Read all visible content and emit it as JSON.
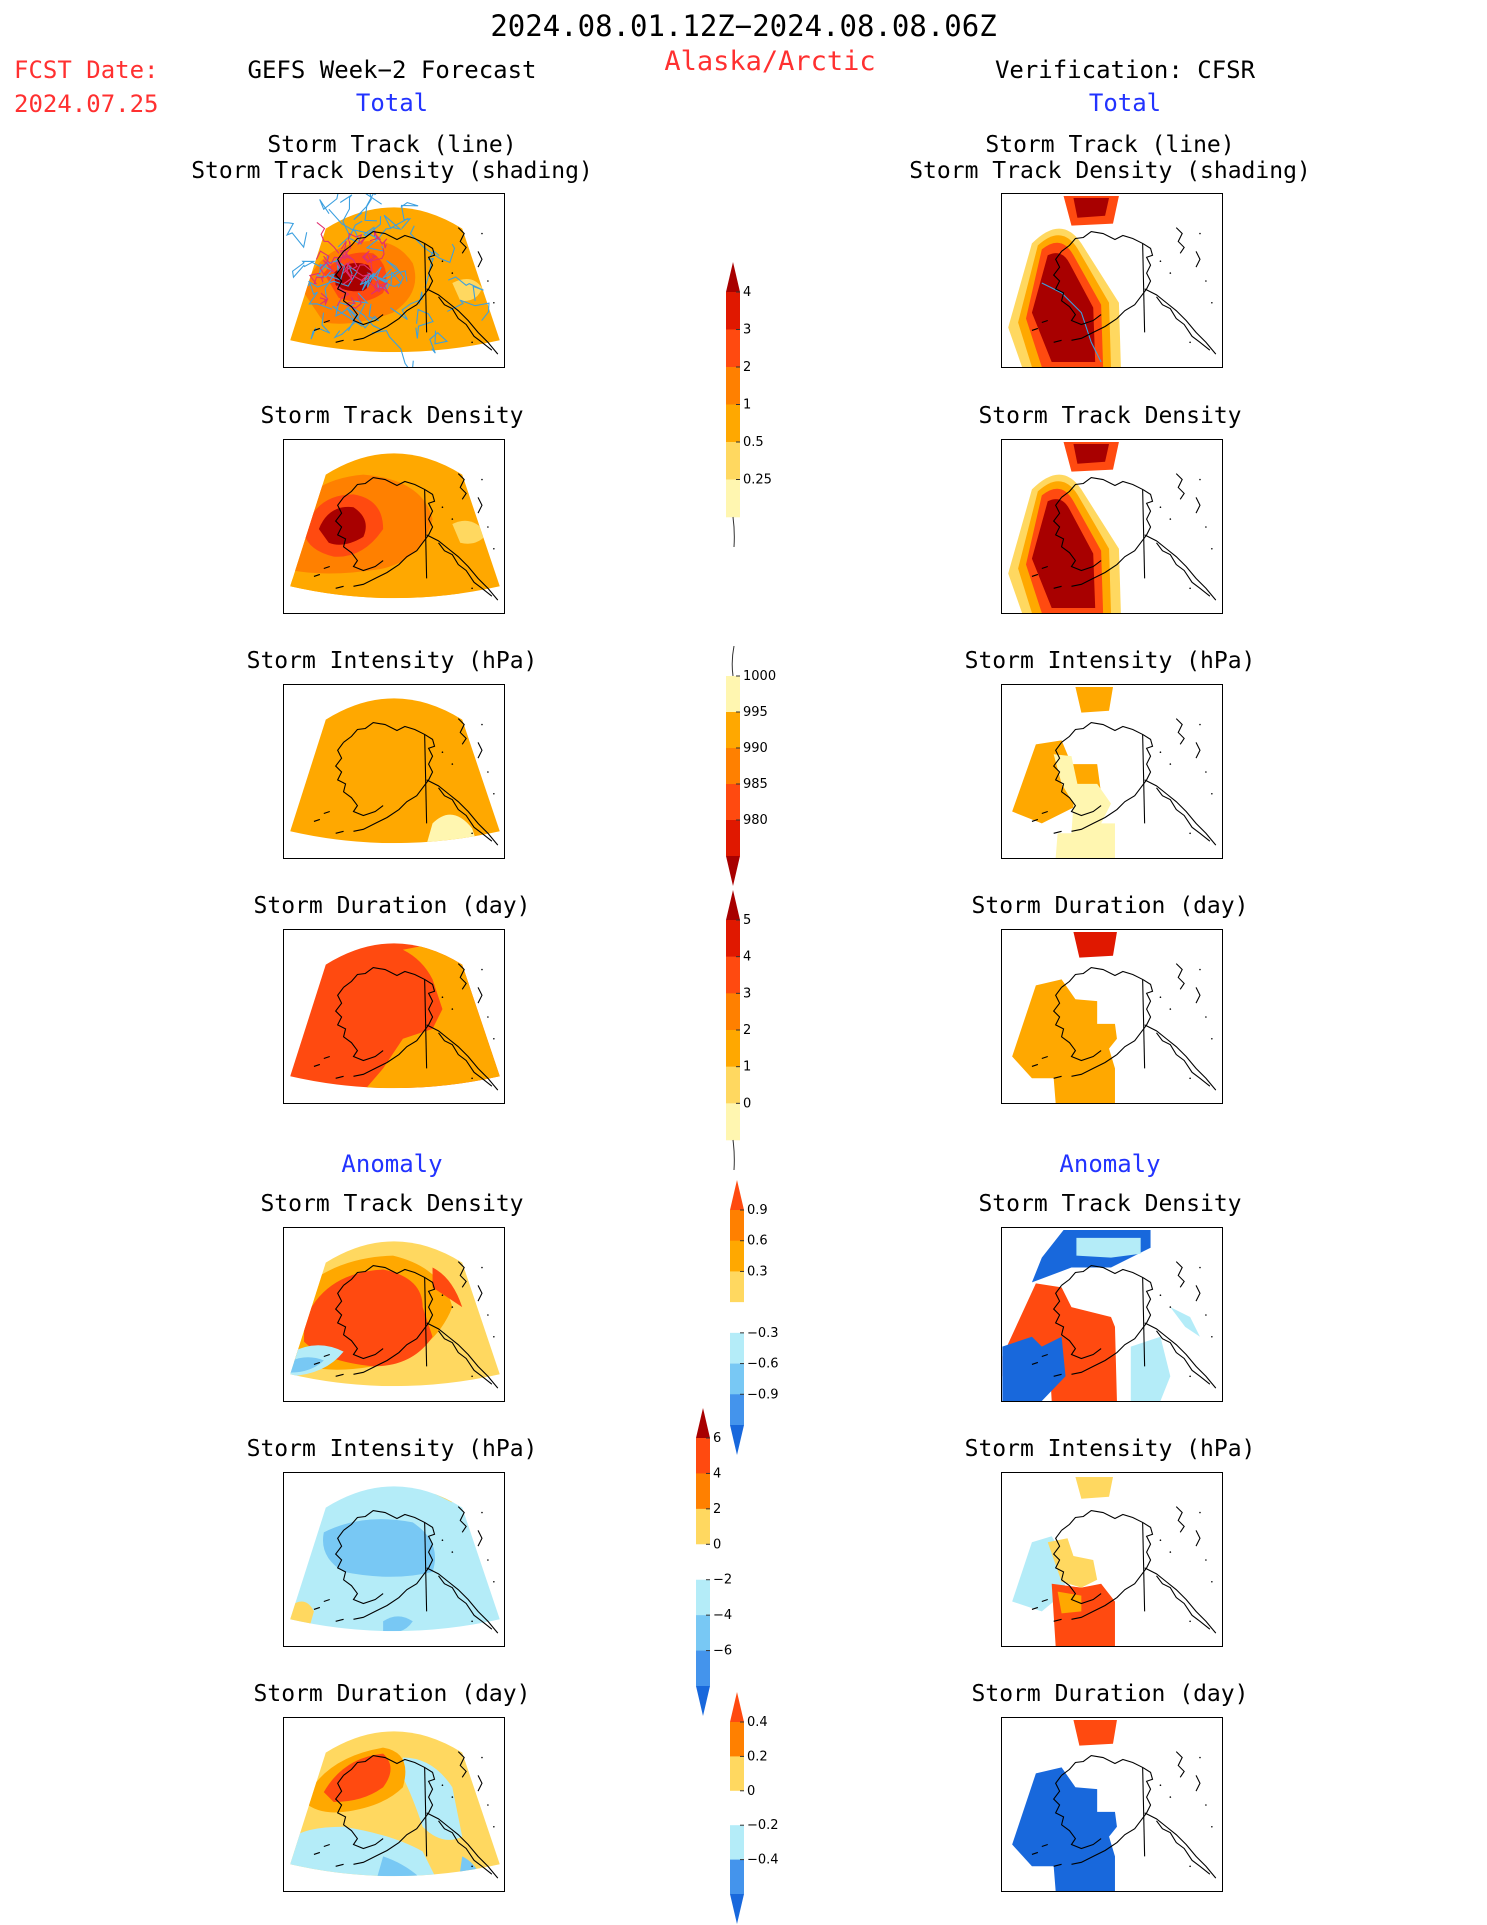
{
  "header": {
    "period": "2024.08.01.12Z−2024.08.08.06Z",
    "region": "Alaska/Arctic",
    "fcst_label": "FCST Date:",
    "fcst_date": "2024.07.25",
    "left_title": "GEFS Week−2 Forecast",
    "right_title": "Verification: CFSR",
    "total_left": "Total",
    "total_right": "Total",
    "anomaly_left": "Anomaly",
    "anomaly_right": "Anomaly"
  },
  "panels": {
    "track_1": "Storm Track (line)",
    "track_2": "Storm Track Density (shading)",
    "density": "Storm Track Density",
    "intensity": "Storm Intensity (hPa)",
    "duration": "Storm Duration (day)"
  },
  "colors": {
    "lightyellow": "#fff6b0",
    "yellow": "#ffd860",
    "gold": "#ffa800",
    "orange": "#ff8000",
    "redorange": "#ff4a10",
    "red": "#e01800",
    "darkred": "#a80000",
    "white": "#ffffff",
    "lightblue": "#b4ecf8",
    "skyblue": "#78c8f4",
    "midblue": "#4494ec",
    "blue": "#1868dc",
    "track_blue": "#3ca0e0",
    "track_pink": "#e03070"
  },
  "chart_data": [
    {
      "type": "colorbar",
      "name_ref": "density_total",
      "ticks": [
        "4",
        "3",
        "2",
        "1",
        "0.5",
        "0.25"
      ],
      "values": [
        4,
        3,
        2,
        1,
        0.5,
        0.25
      ]
    },
    {
      "type": "colorbar",
      "name_ref": "intensity_total",
      "ticks": [
        "1000",
        "995",
        "990",
        "985",
        "980"
      ],
      "values": [
        1000,
        995,
        990,
        985,
        980
      ]
    },
    {
      "type": "colorbar",
      "name_ref": "duration_total",
      "ticks": [
        "5",
        "4",
        "3",
        "2",
        "1",
        "0"
      ],
      "values": [
        5,
        4,
        3,
        2,
        1,
        0
      ]
    },
    {
      "type": "colorbar",
      "name_ref": "density_anom",
      "ticks": [
        "0.9",
        "0.6",
        "0.3",
        "−0.3",
        "−0.6",
        "−0.9"
      ],
      "values": [
        0.9,
        0.6,
        0.3,
        -0.3,
        -0.6,
        -0.9
      ]
    },
    {
      "type": "colorbar",
      "name_ref": "intensity_anom",
      "ticks": [
        "6",
        "4",
        "2",
        "0",
        "−2",
        "−4",
        "−6"
      ],
      "values": [
        6,
        4,
        2,
        0,
        -2,
        -4,
        -6
      ]
    },
    {
      "type": "colorbar",
      "name_ref": "duration_anom",
      "ticks": [
        "0.4",
        "0.2",
        "0",
        "−0.2",
        "−0.4"
      ],
      "values": [
        0.4,
        0.2,
        0,
        -0.2,
        -0.4
      ]
    }
  ]
}
